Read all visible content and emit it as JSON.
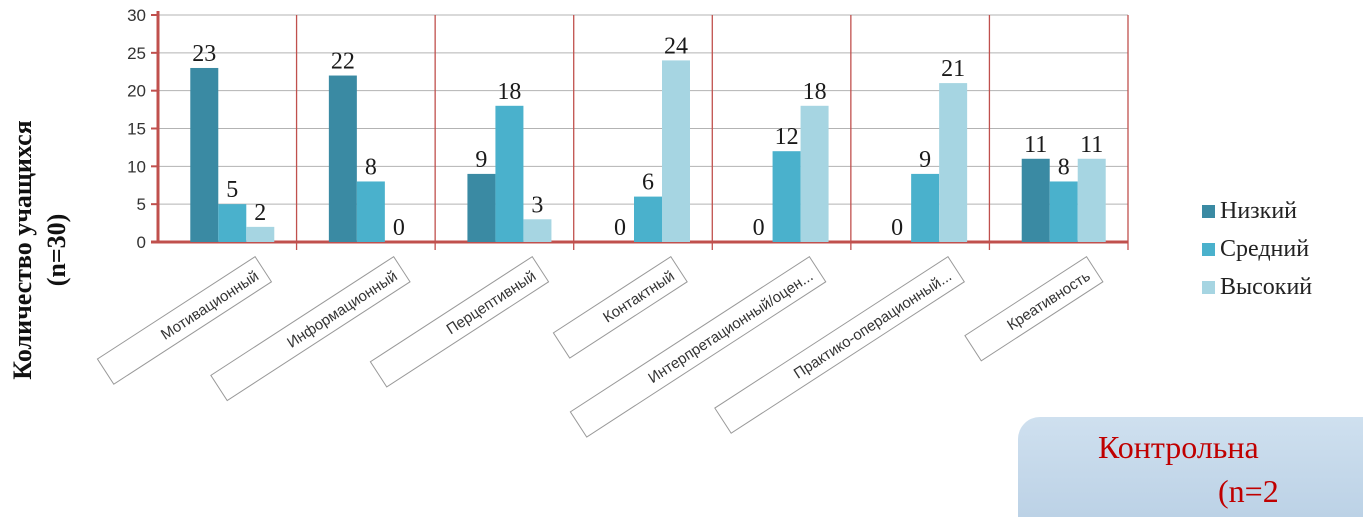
{
  "chart_data": {
    "type": "bar",
    "title": "",
    "xlabel": "",
    "ylabel_lines": [
      "Количество учащихся",
      "(n=30)"
    ],
    "categories": [
      "Мотивационный",
      "Информационный",
      "Перцептивный",
      "Контактный",
      "Интерпретационный/оцен...",
      "Практико-операционный...",
      "Креативность"
    ],
    "series": [
      {
        "name": "Низкий",
        "color": "#3a8aa3",
        "values": [
          23,
          22,
          9,
          0,
          0,
          0,
          11
        ]
      },
      {
        "name": "Средний",
        "color": "#4ab1cc",
        "values": [
          5,
          8,
          18,
          6,
          12,
          9,
          8
        ]
      },
      {
        "name": "Высокий",
        "color": "#a6d5e2",
        "values": [
          2,
          0,
          3,
          24,
          18,
          21,
          11
        ]
      }
    ],
    "ylim": [
      0,
      30
    ],
    "yticks": [
      0,
      5,
      10,
      15,
      20,
      25,
      30
    ],
    "grid": true,
    "gridline_color": "#c0504d",
    "legend_position": "right"
  },
  "overlay": {
    "line1": "Контрольна",
    "line2": "(n=2"
  }
}
